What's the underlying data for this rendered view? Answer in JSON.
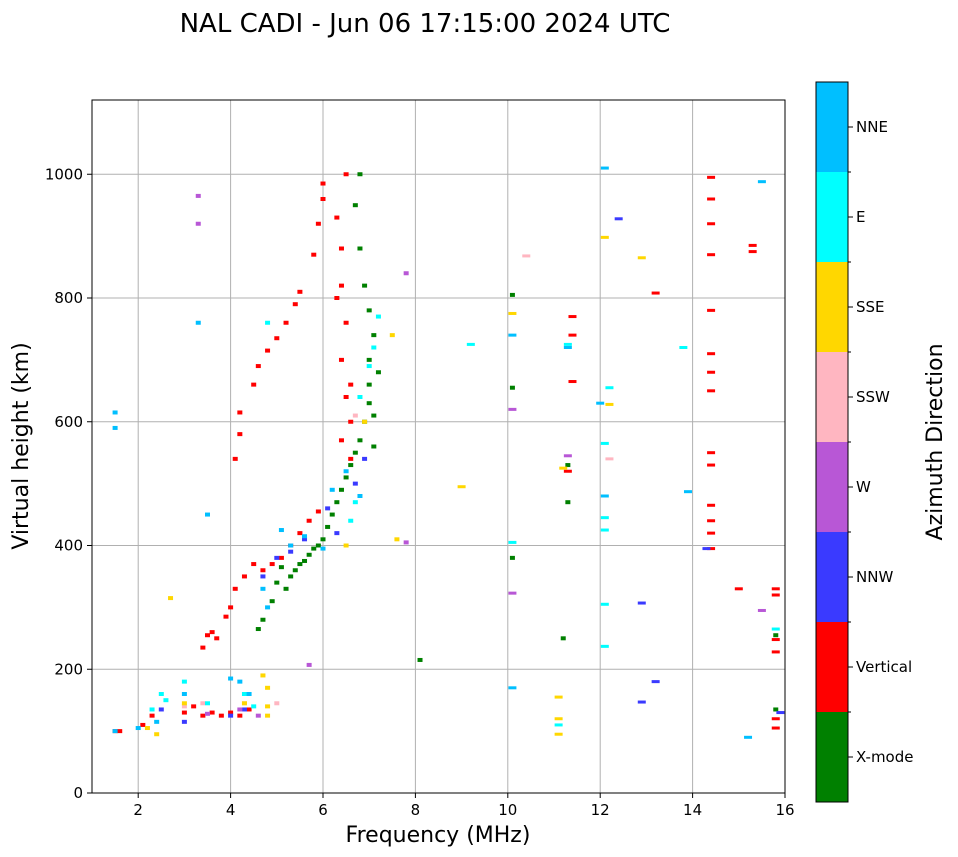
{
  "chart_data": {
    "type": "scatter",
    "title": "NAL CADI - Jun 06 17:15:00 2024 UTC",
    "xlabel": "Frequency (MHz)",
    "ylabel": "Virtual height (km)",
    "xlim": [
      1,
      16
    ],
    "ylim": [
      0,
      1120
    ],
    "xticks": [
      2,
      4,
      6,
      8,
      10,
      12,
      14,
      16
    ],
    "yticks": [
      0,
      200,
      400,
      600,
      800,
      1000
    ],
    "grid": true,
    "colorbar": {
      "label": "Azimuth Direction",
      "categories": [
        {
          "name": "X-mode",
          "color": "#008000"
        },
        {
          "name": "Vertical",
          "color": "#ff0000"
        },
        {
          "name": "NNW",
          "color": "#3a3aff"
        },
        {
          "name": "W",
          "color": "#b857d6"
        },
        {
          "name": "SSW",
          "color": "#ffb6c1"
        },
        {
          "name": "SSE",
          "color": "#ffd700"
        },
        {
          "name": "E",
          "color": "#00ffff"
        },
        {
          "name": "NNE",
          "color": "#00bfff"
        }
      ]
    },
    "series": [
      {
        "name": "X-mode",
        "points": [
          [
            5.2,
            330
          ],
          [
            5.3,
            350
          ],
          [
            5.4,
            360
          ],
          [
            5.5,
            370
          ],
          [
            5.6,
            375
          ],
          [
            5.7,
            385
          ],
          [
            5.8,
            395
          ],
          [
            5.9,
            400
          ],
          [
            6.0,
            410
          ],
          [
            6.1,
            430
          ],
          [
            6.2,
            450
          ],
          [
            6.3,
            470
          ],
          [
            6.4,
            490
          ],
          [
            6.5,
            510
          ],
          [
            6.6,
            530
          ],
          [
            6.7,
            550
          ],
          [
            6.8,
            570
          ],
          [
            6.9,
            600
          ],
          [
            7.0,
            630
          ],
          [
            7.0,
            660
          ],
          [
            7.0,
            700
          ],
          [
            7.1,
            740
          ],
          [
            7.0,
            780
          ],
          [
            6.9,
            820
          ],
          [
            6.8,
            880
          ],
          [
            6.7,
            950
          ],
          [
            6.8,
            1000
          ],
          [
            5.0,
            340
          ],
          [
            4.9,
            310
          ],
          [
            4.7,
            280
          ],
          [
            4.6,
            265
          ],
          [
            5.1,
            365
          ],
          [
            7.1,
            560
          ],
          [
            7.1,
            610
          ],
          [
            7.2,
            680
          ],
          [
            8.1,
            215
          ],
          [
            10.1,
            380
          ],
          [
            10.1,
            655
          ],
          [
            10.1,
            805
          ],
          [
            11.3,
            470
          ],
          [
            11.3,
            530
          ],
          [
            11.2,
            250
          ],
          [
            15.8,
            255
          ],
          [
            15.8,
            135
          ]
        ]
      },
      {
        "name": "Vertical",
        "points": [
          [
            1.5,
            100
          ],
          [
            1.6,
            100
          ],
          [
            2.1,
            110
          ],
          [
            2.3,
            125
          ],
          [
            3.0,
            130
          ],
          [
            3.2,
            140
          ],
          [
            3.4,
            125
          ],
          [
            3.6,
            130
          ],
          [
            3.8,
            125
          ],
          [
            4.0,
            130
          ],
          [
            4.2,
            125
          ],
          [
            4.4,
            135
          ],
          [
            3.5,
            255
          ],
          [
            3.7,
            250
          ],
          [
            3.6,
            260
          ],
          [
            3.4,
            235
          ],
          [
            3.9,
            285
          ],
          [
            4.0,
            300
          ],
          [
            4.1,
            330
          ],
          [
            4.3,
            350
          ],
          [
            4.5,
            370
          ],
          [
            4.7,
            360
          ],
          [
            4.9,
            370
          ],
          [
            5.1,
            380
          ],
          [
            5.3,
            400
          ],
          [
            5.5,
            420
          ],
          [
            5.7,
            440
          ],
          [
            5.9,
            455
          ],
          [
            4.1,
            540
          ],
          [
            4.2,
            580
          ],
          [
            4.2,
            615
          ],
          [
            4.5,
            660
          ],
          [
            4.6,
            690
          ],
          [
            4.8,
            715
          ],
          [
            5.0,
            735
          ],
          [
            5.2,
            760
          ],
          [
            5.4,
            790
          ],
          [
            5.5,
            810
          ],
          [
            5.8,
            870
          ],
          [
            5.9,
            920
          ],
          [
            6.0,
            960
          ],
          [
            6.0,
            985
          ],
          [
            6.3,
            930
          ],
          [
            6.4,
            880
          ],
          [
            6.4,
            820
          ],
          [
            6.5,
            760
          ],
          [
            6.4,
            700
          ],
          [
            6.5,
            640
          ],
          [
            6.6,
            600
          ],
          [
            6.4,
            570
          ],
          [
            6.6,
            540
          ],
          [
            6.6,
            660
          ],
          [
            6.3,
            800
          ],
          [
            6.5,
            1000
          ],
          [
            11.4,
            665
          ],
          [
            11.4,
            740
          ],
          [
            11.4,
            770
          ],
          [
            11.3,
            520
          ],
          [
            14.4,
            395
          ],
          [
            14.4,
            420
          ],
          [
            14.4,
            440
          ],
          [
            14.4,
            465
          ],
          [
            14.4,
            530
          ],
          [
            14.4,
            550
          ],
          [
            14.4,
            650
          ],
          [
            14.4,
            680
          ],
          [
            14.4,
            710
          ],
          [
            14.4,
            780
          ],
          [
            14.4,
            870
          ],
          [
            14.4,
            920
          ],
          [
            14.4,
            960
          ],
          [
            14.4,
            995
          ],
          [
            15.0,
            330
          ],
          [
            15.8,
            330
          ],
          [
            15.8,
            320
          ],
          [
            15.8,
            248
          ],
          [
            15.8,
            228
          ],
          [
            15.8,
            120
          ],
          [
            15.8,
            105
          ],
          [
            13.2,
            808
          ],
          [
            15.3,
            885
          ],
          [
            15.3,
            875
          ]
        ]
      },
      {
        "name": "NNW",
        "points": [
          [
            2.5,
            135
          ],
          [
            3.0,
            115
          ],
          [
            4.0,
            125
          ],
          [
            4.3,
            135
          ],
          [
            4.7,
            350
          ],
          [
            5.0,
            380
          ],
          [
            5.3,
            390
          ],
          [
            5.6,
            410
          ],
          [
            6.1,
            460
          ],
          [
            6.3,
            420
          ],
          [
            6.7,
            500
          ],
          [
            6.9,
            540
          ],
          [
            12.4,
            928
          ],
          [
            12.9,
            307
          ],
          [
            12.9,
            147
          ],
          [
            13.2,
            180
          ],
          [
            14.3,
            395
          ],
          [
            15.9,
            130
          ]
        ]
      },
      {
        "name": "W",
        "points": [
          [
            3.3,
            965
          ],
          [
            3.3,
            920
          ],
          [
            3.5,
            128
          ],
          [
            4.2,
            135
          ],
          [
            4.6,
            125
          ],
          [
            5.7,
            207
          ],
          [
            7.8,
            840
          ],
          [
            7.8,
            405
          ],
          [
            10.1,
            323
          ],
          [
            10.1,
            620
          ],
          [
            11.3,
            545
          ],
          [
            15.5,
            295
          ]
        ]
      },
      {
        "name": "SSW",
        "points": [
          [
            3.0,
            140
          ],
          [
            3.4,
            145
          ],
          [
            4.3,
            145
          ],
          [
            5.0,
            145
          ],
          [
            6.7,
            610
          ],
          [
            10.4,
            868
          ],
          [
            12.2,
            540
          ]
        ]
      },
      {
        "name": "SSE",
        "points": [
          [
            2.2,
            105
          ],
          [
            2.4,
            95
          ],
          [
            2.7,
            315
          ],
          [
            3.0,
            145
          ],
          [
            4.3,
            145
          ],
          [
            4.7,
            190
          ],
          [
            4.8,
            170
          ],
          [
            4.8,
            140
          ],
          [
            4.8,
            125
          ],
          [
            6.5,
            400
          ],
          [
            6.9,
            600
          ],
          [
            7.5,
            740
          ],
          [
            7.6,
            410
          ],
          [
            9.0,
            495
          ],
          [
            10.1,
            775
          ],
          [
            11.1,
            95
          ],
          [
            11.1,
            120
          ],
          [
            11.1,
            155
          ],
          [
            11.2,
            525
          ],
          [
            12.1,
            898
          ],
          [
            12.2,
            628
          ],
          [
            12.9,
            865
          ]
        ]
      },
      {
        "name": "E",
        "points": [
          [
            2.3,
            135
          ],
          [
            2.5,
            160
          ],
          [
            2.6,
            150
          ],
          [
            3.0,
            180
          ],
          [
            3.5,
            145
          ],
          [
            4.3,
            160
          ],
          [
            4.5,
            140
          ],
          [
            4.8,
            760
          ],
          [
            6.6,
            440
          ],
          [
            6.7,
            470
          ],
          [
            6.8,
            640
          ],
          [
            7.0,
            690
          ],
          [
            7.1,
            720
          ],
          [
            7.2,
            770
          ],
          [
            9.2,
            725
          ],
          [
            10.1,
            405
          ],
          [
            11.1,
            110
          ],
          [
            11.3,
            725
          ],
          [
            12.1,
            565
          ],
          [
            12.1,
            445
          ],
          [
            12.1,
            425
          ],
          [
            12.2,
            655
          ],
          [
            12.1,
            305
          ],
          [
            12.1,
            237
          ],
          [
            13.8,
            720
          ],
          [
            15.8,
            265
          ]
        ]
      },
      {
        "name": "NNE",
        "points": [
          [
            1.5,
            615
          ],
          [
            1.5,
            590
          ],
          [
            1.5,
            100
          ],
          [
            2.0,
            105
          ],
          [
            2.4,
            115
          ],
          [
            3.0,
            160
          ],
          [
            3.3,
            760
          ],
          [
            3.5,
            450
          ],
          [
            4.0,
            185
          ],
          [
            4.2,
            180
          ],
          [
            4.4,
            160
          ],
          [
            4.7,
            330
          ],
          [
            4.8,
            300
          ],
          [
            5.1,
            425
          ],
          [
            5.3,
            400
          ],
          [
            5.6,
            415
          ],
          [
            6.0,
            395
          ],
          [
            6.2,
            490
          ],
          [
            6.5,
            520
          ],
          [
            6.8,
            480
          ],
          [
            10.1,
            740
          ],
          [
            10.1,
            170
          ],
          [
            11.3,
            720
          ],
          [
            12.0,
            630
          ],
          [
            12.1,
            1010
          ],
          [
            12.1,
            480
          ],
          [
            13.9,
            487
          ],
          [
            15.5,
            988
          ],
          [
            15.2,
            90
          ]
        ]
      }
    ]
  }
}
